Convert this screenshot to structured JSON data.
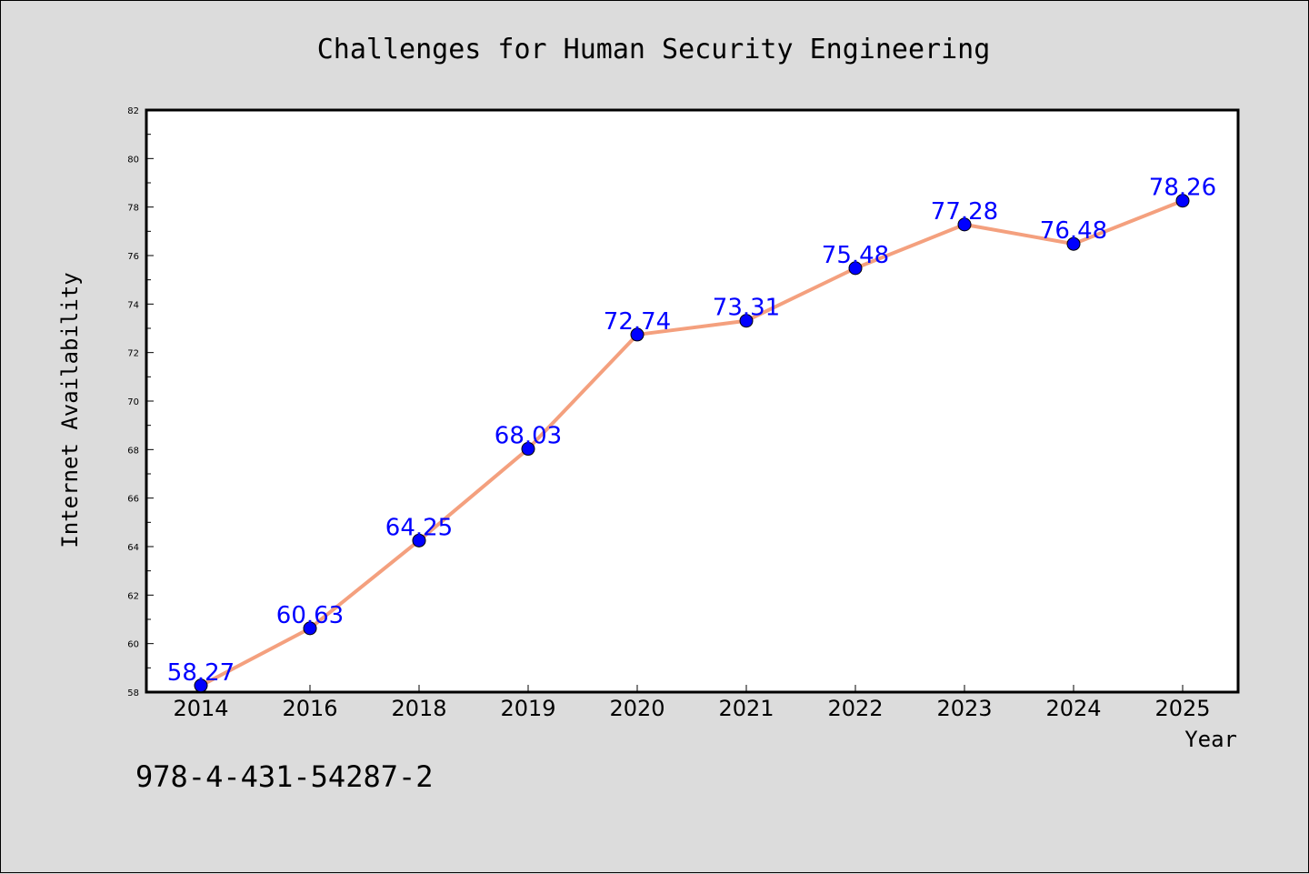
{
  "chart_data": {
    "type": "line",
    "title": "Challenges for Human Security Engineering",
    "xlabel": "Year",
    "ylabel": "Internet Availability",
    "categories": [
      "2014",
      "2016",
      "2018",
      "2019",
      "2020",
      "2021",
      "2022",
      "2023",
      "2024",
      "2025"
    ],
    "series": [
      {
        "values": [
          58.27,
          60.63,
          64.25,
          68.03,
          72.74,
          73.31,
          75.48,
          77.28,
          76.48,
          78.26
        ]
      }
    ],
    "data_labels": [
      "58.27",
      "60.63",
      "64.25",
      "68.03",
      "72.74",
      "73.31",
      "75.48",
      "77.28",
      "76.48",
      "78.26"
    ],
    "ylim": [
      58,
      82
    ],
    "yticks": [
      "58",
      "60",
      "62",
      "64",
      "66",
      "68",
      "70",
      "72",
      "74",
      "76",
      "78",
      "80",
      "82"
    ],
    "grid": false,
    "line_color": "#f4a07e",
    "marker_color": "#0000ff",
    "label_color": "#0000ff",
    "background": "#dcdcdc",
    "plot_background": "#ffffff"
  },
  "footer": {
    "code": "978-4-431-54287-2"
  }
}
